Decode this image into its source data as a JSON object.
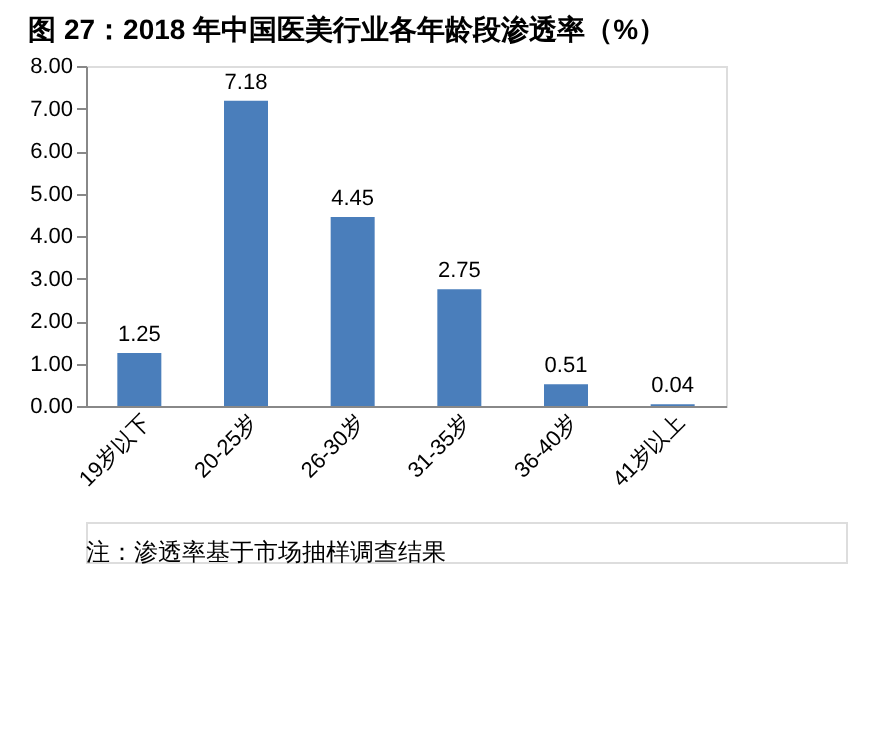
{
  "chart_data": {
    "type": "bar",
    "title": "图 27：2018 年中国医美行业各年龄段渗透率（%）",
    "categories": [
      "19岁以下",
      "20-25岁",
      "26-30岁",
      "31-35岁",
      "36-40岁",
      "41岁以上"
    ],
    "values": [
      1.25,
      7.18,
      4.45,
      2.75,
      0.51,
      0.04
    ],
    "color": "#4a7ebb",
    "ylim": [
      0,
      8
    ],
    "yticks": [
      {
        "value": 0,
        "label": "0.00"
      },
      {
        "value": 1,
        "label": "1.00"
      },
      {
        "value": 2,
        "label": "2.00"
      },
      {
        "value": 3,
        "label": "3.00"
      },
      {
        "value": 4,
        "label": "4.00"
      },
      {
        "value": 5,
        "label": "5.00"
      },
      {
        "value": 6,
        "label": "6.00"
      },
      {
        "value": 7,
        "label": "7.00"
      },
      {
        "value": 8,
        "label": "8.00"
      }
    ],
    "data_labels": true,
    "grid": false,
    "annotations": [
      "注：渗透率基于市场抽样调查结果"
    ]
  }
}
